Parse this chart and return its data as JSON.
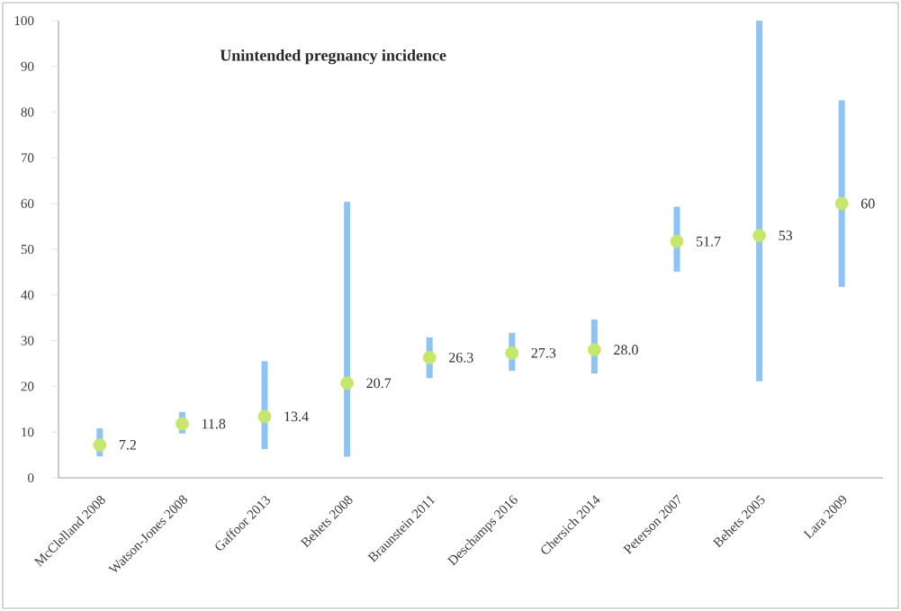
{
  "chart_data": {
    "type": "scatter",
    "title": "Unintended pregnancy incidence",
    "categories": [
      "McClelland 2008",
      "Watson-Jones 2008",
      "Gaffoor 2013",
      "Behets 2008",
      "Braunstein 2011",
      "Deschamps 2016",
      "Chersich 2014",
      "Peterson 2007",
      "Behets 2005",
      "Lara 2009"
    ],
    "series": [
      {
        "color": "#c5e86c",
        "values": [
          7.2,
          11.8,
          13.4,
          20.7,
          26.3,
          27.3,
          28.0,
          51.7,
          53,
          60
        ],
        "errors": [
          [
            4.7,
            10.8
          ],
          [
            9.7,
            14.4
          ],
          [
            6.3,
            25.5
          ],
          [
            4.6,
            60.4
          ],
          [
            21.8,
            30.7
          ],
          [
            23.4,
            31.7
          ],
          [
            22.8,
            34.6
          ],
          [
            45.1,
            59.3
          ],
          [
            21.1,
            100
          ],
          [
            41.8,
            82.6
          ]
        ],
        "value_labels": [
          "7.2",
          "11.8",
          "13.4",
          "20.7",
          "26.3",
          "27.3",
          "28.0",
          "51.7",
          "53",
          "60"
        ]
      }
    ],
    "ylim": [
      0,
      100
    ],
    "yticks": [
      0,
      10,
      20,
      30,
      40,
      50,
      60,
      70,
      80,
      90,
      100
    ]
  }
}
